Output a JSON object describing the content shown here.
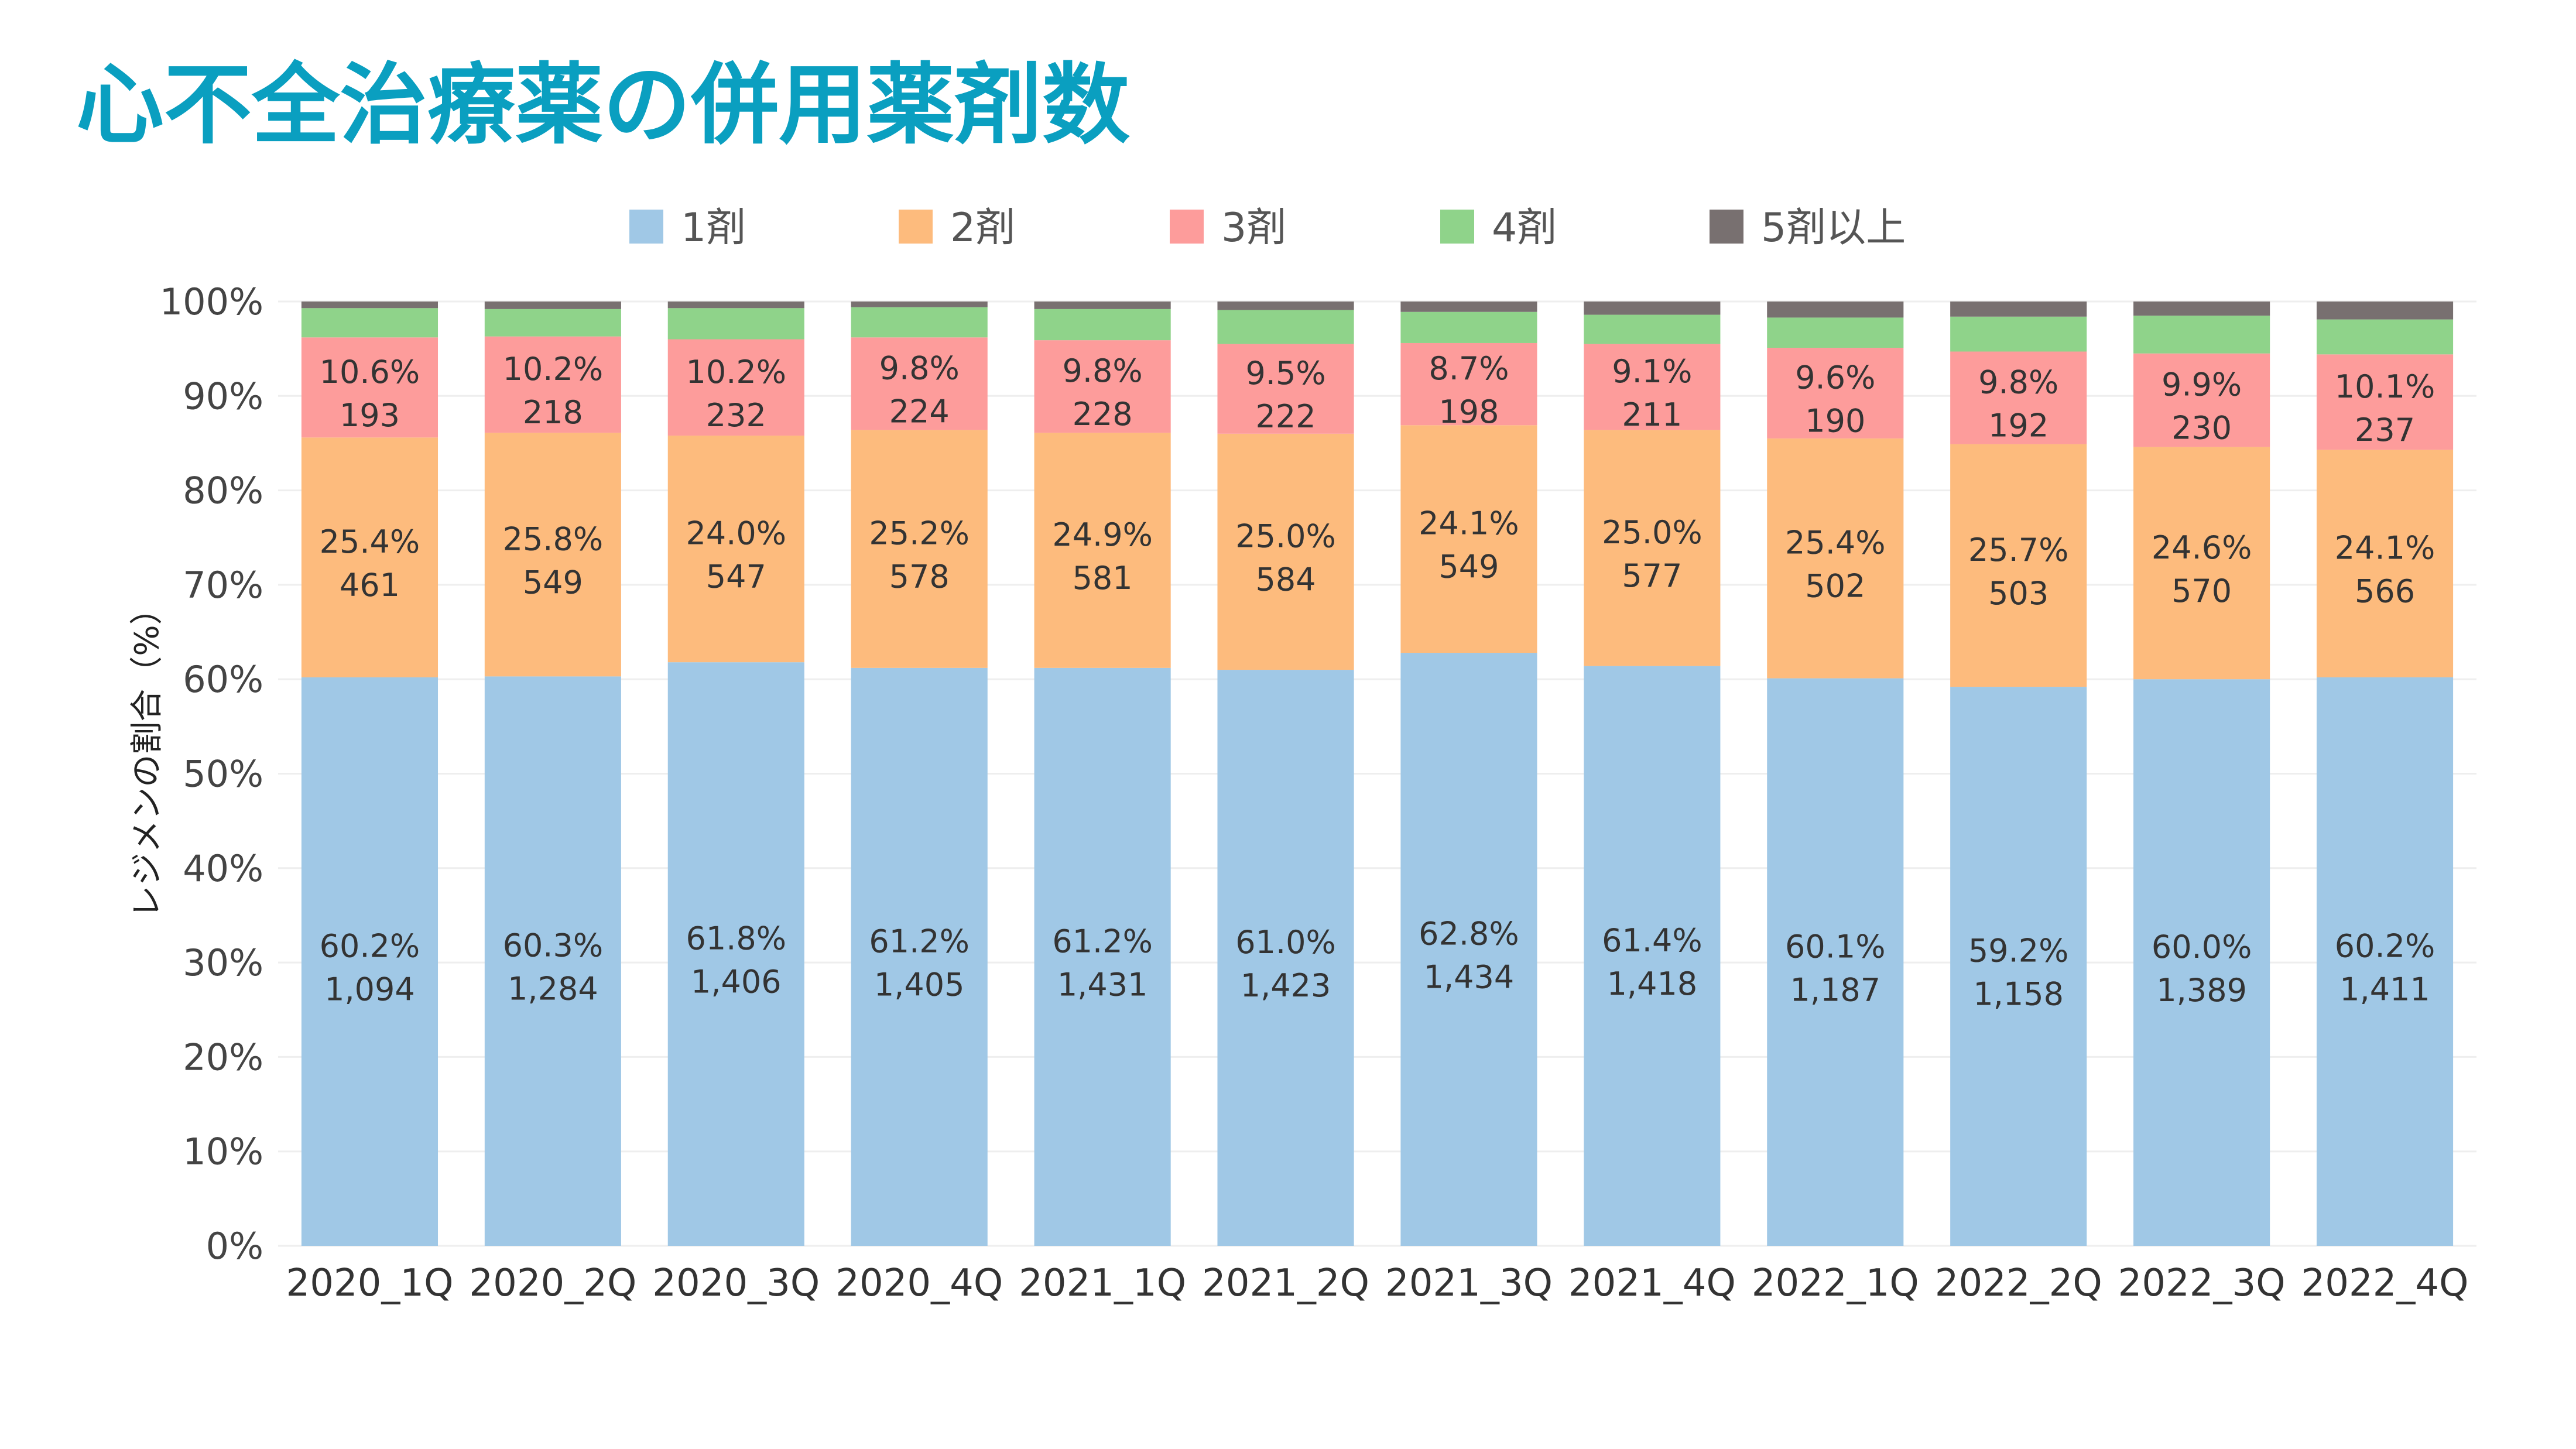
{
  "page": {
    "title": "心不全治療薬の併用薬剤数",
    "title_color": "#0a9fc0"
  },
  "chart_data": {
    "type": "bar",
    "stacked": true,
    "normalized_percent": true,
    "ylabel": "レジメンの割合（%）",
    "xlabel": "",
    "ylim": [
      0,
      100
    ],
    "yticks": [
      "0%",
      "10%",
      "20%",
      "30%",
      "40%",
      "50%",
      "60%",
      "70%",
      "80%",
      "90%",
      "100%"
    ],
    "grid": true,
    "legend_position": "top",
    "categories": [
      "2020_1Q",
      "2020_2Q",
      "2020_3Q",
      "2020_4Q",
      "2021_1Q",
      "2021_2Q",
      "2021_3Q",
      "2021_4Q",
      "2022_1Q",
      "2022_2Q",
      "2022_3Q",
      "2022_4Q"
    ],
    "series": [
      {
        "name": "1剤",
        "color": "#a0c8e6",
        "labeled": true,
        "values": [
          60.2,
          60.3,
          61.8,
          61.2,
          61.2,
          61.0,
          62.8,
          61.4,
          60.1,
          59.2,
          60.0,
          60.2
        ],
        "pct_labels": [
          "60.2%",
          "60.3%",
          "61.8%",
          "61.2%",
          "61.2%",
          "61.0%",
          "62.8%",
          "61.4%",
          "60.1%",
          "59.2%",
          "60.0%",
          "60.2%"
        ],
        "counts": [
          "1,094",
          "1,284",
          "1,406",
          "1,405",
          "1,431",
          "1,423",
          "1,434",
          "1,418",
          "1,187",
          "1,158",
          "1,389",
          "1,411"
        ]
      },
      {
        "name": "2剤",
        "color": "#fdbb7d",
        "labeled": true,
        "values": [
          25.4,
          25.8,
          24.0,
          25.2,
          24.9,
          25.0,
          24.1,
          25.0,
          25.4,
          25.7,
          24.6,
          24.1
        ],
        "pct_labels": [
          "25.4%",
          "25.8%",
          "24.0%",
          "25.2%",
          "24.9%",
          "25.0%",
          "24.1%",
          "25.0%",
          "25.4%",
          "25.7%",
          "24.6%",
          "24.1%"
        ],
        "counts": [
          "461",
          "549",
          "547",
          "578",
          "581",
          "584",
          "549",
          "577",
          "502",
          "503",
          "570",
          "566"
        ]
      },
      {
        "name": "3剤",
        "color": "#fd9c9b",
        "labeled": true,
        "values": [
          10.6,
          10.2,
          10.2,
          9.8,
          9.8,
          9.5,
          8.7,
          9.1,
          9.6,
          9.8,
          9.9,
          10.1
        ],
        "pct_labels": [
          "10.6%",
          "10.2%",
          "10.2%",
          "9.8%",
          "9.8%",
          "9.5%",
          "8.7%",
          "9.1%",
          "9.6%",
          "9.8%",
          "9.9%",
          "10.1%"
        ],
        "counts": [
          "193",
          "218",
          "232",
          "224",
          "228",
          "222",
          "198",
          "211",
          "190",
          "192",
          "230",
          "237"
        ]
      },
      {
        "name": "4剤",
        "color": "#8fd38a",
        "labeled": false,
        "values": [
          3.1,
          2.9,
          3.3,
          3.2,
          3.3,
          3.6,
          3.3,
          3.1,
          3.2,
          3.7,
          4.0,
          3.7
        ]
      },
      {
        "name": "5剤以上",
        "color": "#787070",
        "labeled": false,
        "values": [
          0.7,
          0.8,
          0.7,
          0.6,
          0.8,
          0.9,
          1.1,
          1.4,
          1.7,
          1.6,
          1.5,
          1.9
        ]
      }
    ]
  }
}
